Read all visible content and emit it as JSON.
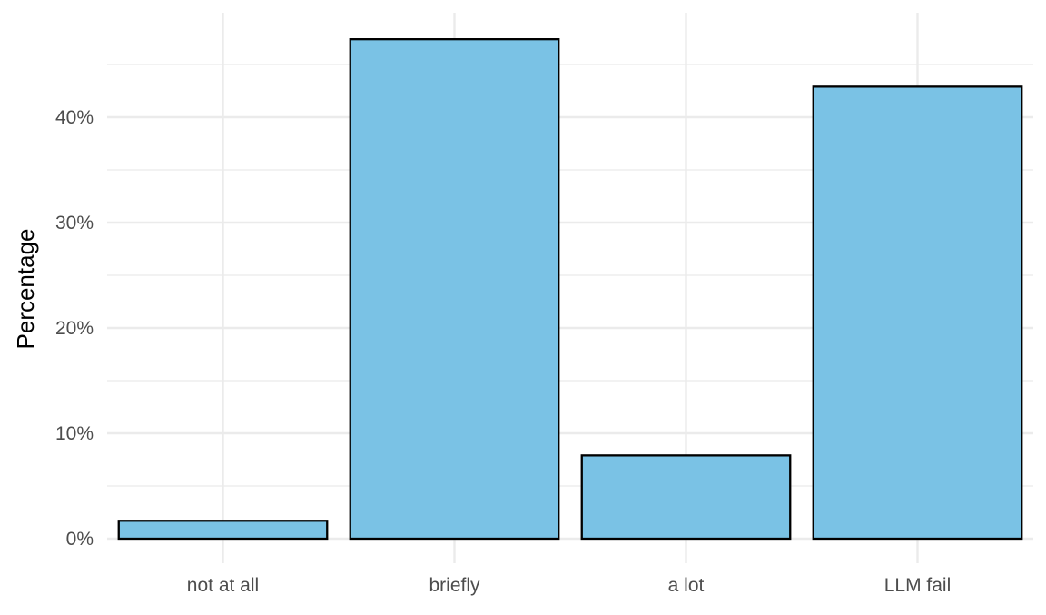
{
  "chart_data": {
    "type": "bar",
    "categories": [
      "not at all",
      "briefly",
      "a lot",
      "LLM fail"
    ],
    "values": [
      1.7,
      47.4,
      7.9,
      42.9
    ],
    "value_unit": "%",
    "title": "",
    "xlabel": "",
    "ylabel": "Percentage",
    "ylim": [
      0,
      50
    ],
    "y_ticks": [
      0,
      10,
      20,
      30,
      40
    ],
    "y_tick_labels": [
      "0%",
      "10%",
      "20%",
      "30%",
      "40%"
    ],
    "grid": true,
    "legend": "none",
    "bar_fill": "#7AC2E5",
    "bar_stroke": "#000000",
    "grid_color": "#EBEBEB"
  }
}
